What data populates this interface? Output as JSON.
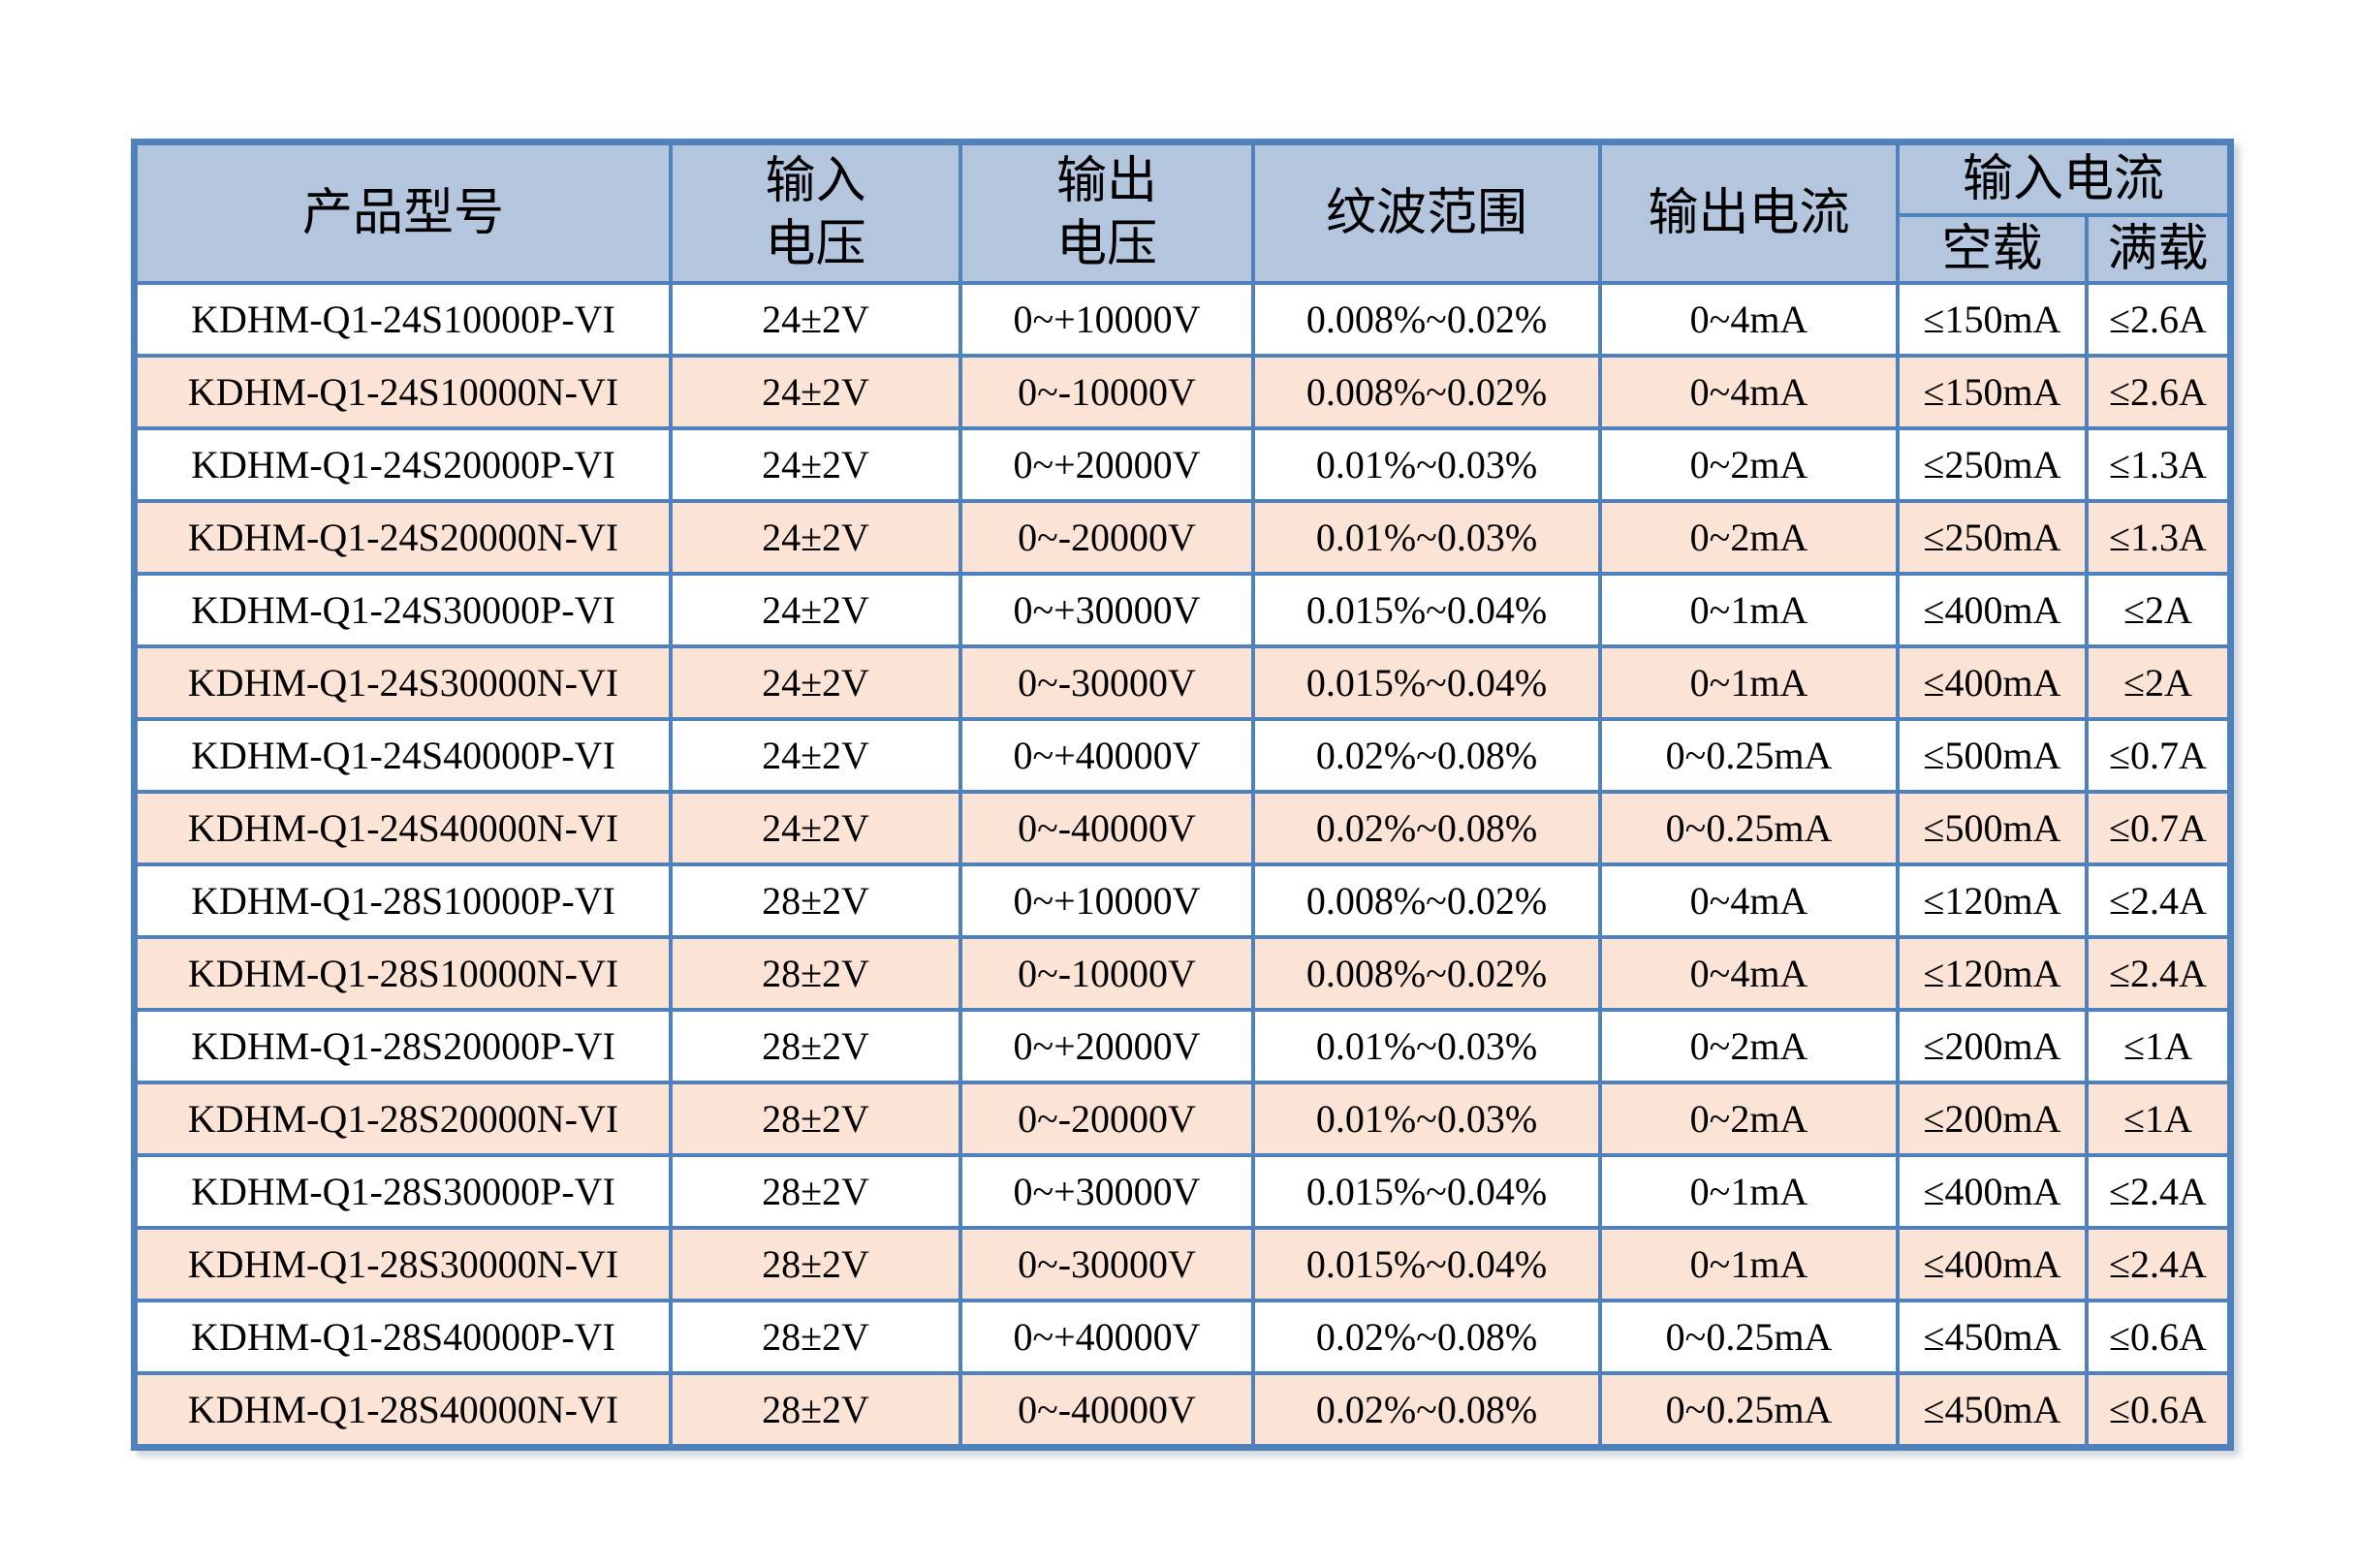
{
  "table": {
    "colors": {
      "border": "#4f81bd",
      "header_bg": "#b4c6dd",
      "row_bg": "#ffffff",
      "row_alt_bg": "#fbe4d5",
      "text": "#000000"
    },
    "headers": {
      "product_model": "产品型号",
      "input_voltage": "输入\n电压",
      "output_voltage": "输出\n电压",
      "ripple_range": "纹波范围",
      "output_current": "输出电流",
      "input_current_group": "输入电流",
      "no_load": "空载",
      "full_load": "满载"
    },
    "rows": [
      {
        "model": "KDHM-Q1-24S10000P-VI",
        "input_voltage": "24±2V",
        "output_voltage": "0~+10000V",
        "ripple": "0.008%~0.02%",
        "output_current": "0~4mA",
        "no_load": "≤150mA",
        "full_load": "≤2.6A"
      },
      {
        "model": "KDHM-Q1-24S10000N-VI",
        "input_voltage": "24±2V",
        "output_voltage": "0~-10000V",
        "ripple": "0.008%~0.02%",
        "output_current": "0~4mA",
        "no_load": "≤150mA",
        "full_load": "≤2.6A"
      },
      {
        "model": "KDHM-Q1-24S20000P-VI",
        "input_voltage": "24±2V",
        "output_voltage": "0~+20000V",
        "ripple": "0.01%~0.03%",
        "output_current": "0~2mA",
        "no_load": "≤250mA",
        "full_load": "≤1.3A"
      },
      {
        "model": "KDHM-Q1-24S20000N-VI",
        "input_voltage": "24±2V",
        "output_voltage": "0~-20000V",
        "ripple": "0.01%~0.03%",
        "output_current": "0~2mA",
        "no_load": "≤250mA",
        "full_load": "≤1.3A"
      },
      {
        "model": "KDHM-Q1-24S30000P-VI",
        "input_voltage": "24±2V",
        "output_voltage": "0~+30000V",
        "ripple": "0.015%~0.04%",
        "output_current": "0~1mA",
        "no_load": "≤400mA",
        "full_load": "≤2A"
      },
      {
        "model": "KDHM-Q1-24S30000N-VI",
        "input_voltage": "24±2V",
        "output_voltage": "0~-30000V",
        "ripple": "0.015%~0.04%",
        "output_current": "0~1mA",
        "no_load": "≤400mA",
        "full_load": "≤2A"
      },
      {
        "model": "KDHM-Q1-24S40000P-VI",
        "input_voltage": "24±2V",
        "output_voltage": "0~+40000V",
        "ripple": "0.02%~0.08%",
        "output_current": "0~0.25mA",
        "no_load": "≤500mA",
        "full_load": "≤0.7A"
      },
      {
        "model": "KDHM-Q1-24S40000N-VI",
        "input_voltage": "24±2V",
        "output_voltage": "0~-40000V",
        "ripple": "0.02%~0.08%",
        "output_current": "0~0.25mA",
        "no_load": "≤500mA",
        "full_load": "≤0.7A"
      },
      {
        "model": "KDHM-Q1-28S10000P-VI",
        "input_voltage": "28±2V",
        "output_voltage": "0~+10000V",
        "ripple": "0.008%~0.02%",
        "output_current": "0~4mA",
        "no_load": "≤120mA",
        "full_load": "≤2.4A"
      },
      {
        "model": "KDHM-Q1-28S10000N-VI",
        "input_voltage": "28±2V",
        "output_voltage": "0~-10000V",
        "ripple": "0.008%~0.02%",
        "output_current": "0~4mA",
        "no_load": "≤120mA",
        "full_load": "≤2.4A"
      },
      {
        "model": "KDHM-Q1-28S20000P-VI",
        "input_voltage": "28±2V",
        "output_voltage": "0~+20000V",
        "ripple": "0.01%~0.03%",
        "output_current": "0~2mA",
        "no_load": "≤200mA",
        "full_load": "≤1A"
      },
      {
        "model": "KDHM-Q1-28S20000N-VI",
        "input_voltage": "28±2V",
        "output_voltage": "0~-20000V",
        "ripple": "0.01%~0.03%",
        "output_current": "0~2mA",
        "no_load": "≤200mA",
        "full_load": "≤1A"
      },
      {
        "model": "KDHM-Q1-28S30000P-VI",
        "input_voltage": "28±2V",
        "output_voltage": "0~+30000V",
        "ripple": "0.015%~0.04%",
        "output_current": "0~1mA",
        "no_load": "≤400mA",
        "full_load": "≤2.4A"
      },
      {
        "model": "KDHM-Q1-28S30000N-VI",
        "input_voltage": "28±2V",
        "output_voltage": "0~-30000V",
        "ripple": "0.015%~0.04%",
        "output_current": "0~1mA",
        "no_load": "≤400mA",
        "full_load": "≤2.4A"
      },
      {
        "model": "KDHM-Q1-28S40000P-VI",
        "input_voltage": "28±2V",
        "output_voltage": "0~+40000V",
        "ripple": "0.02%~0.08%",
        "output_current": "0~0.25mA",
        "no_load": "≤450mA",
        "full_load": "≤0.6A"
      },
      {
        "model": "KDHM-Q1-28S40000N-VI",
        "input_voltage": "28±2V",
        "output_voltage": "0~-40000V",
        "ripple": "0.02%~0.08%",
        "output_current": "0~0.25mA",
        "no_load": "≤450mA",
        "full_load": "≤0.6A"
      }
    ]
  }
}
